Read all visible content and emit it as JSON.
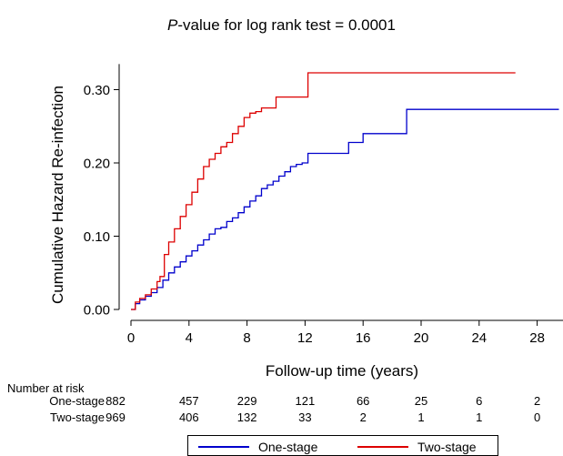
{
  "chart_data": {
    "type": "line",
    "step": true,
    "title_prefix": "P",
    "title_suffix": "-value for log rank test = 0.0001",
    "xlabel": "Follow-up time (years)",
    "ylabel": "Cumulative Hazard Re-infection",
    "xlim": [
      0,
      30
    ],
    "ylim": [
      0,
      0.33
    ],
    "xticks": [
      0,
      4,
      8,
      12,
      16,
      20,
      24,
      28
    ],
    "yticks": [
      0.0,
      0.1,
      0.2,
      0.3
    ],
    "ytick_labels": [
      "0.00",
      "0.10",
      "0.20",
      "0.30"
    ],
    "grid": false,
    "legend_position": "bottom",
    "series": [
      {
        "name": "One-stage",
        "color": "#0000cc",
        "x": [
          0,
          0.3,
          0.6,
          1.0,
          1.4,
          1.8,
          2.2,
          2.6,
          3.0,
          3.4,
          3.8,
          4.2,
          4.6,
          5.0,
          5.4,
          5.8,
          6.2,
          6.6,
          7.0,
          7.4,
          7.8,
          8.2,
          8.6,
          9.0,
          9.4,
          9.8,
          10.2,
          10.6,
          11.0,
          11.4,
          11.8,
          12.2,
          12.6,
          13.0,
          14.0,
          15.0,
          15.6,
          16.0,
          17.0,
          18.0,
          19.0,
          29.5
        ],
        "y": [
          0.0,
          0.008,
          0.013,
          0.018,
          0.023,
          0.03,
          0.04,
          0.05,
          0.058,
          0.065,
          0.073,
          0.08,
          0.088,
          0.095,
          0.103,
          0.11,
          0.112,
          0.12,
          0.125,
          0.132,
          0.14,
          0.148,
          0.155,
          0.165,
          0.17,
          0.175,
          0.182,
          0.188,
          0.195,
          0.198,
          0.2,
          0.213,
          0.213,
          0.213,
          0.213,
          0.228,
          0.228,
          0.24,
          0.24,
          0.24,
          0.273,
          0.273
        ]
      },
      {
        "name": "Two-stage",
        "color": "#dd0000",
        "x": [
          0,
          0.3,
          0.6,
          1.0,
          1.4,
          1.8,
          2.0,
          2.3,
          2.6,
          3.0,
          3.4,
          3.8,
          4.2,
          4.6,
          5.0,
          5.4,
          5.8,
          6.2,
          6.6,
          7.0,
          7.4,
          7.8,
          8.2,
          8.6,
          9.0,
          9.6,
          10.0,
          12.0,
          12.2,
          26.5
        ],
        "y": [
          0.0,
          0.01,
          0.015,
          0.02,
          0.028,
          0.038,
          0.045,
          0.075,
          0.092,
          0.11,
          0.127,
          0.143,
          0.16,
          0.178,
          0.195,
          0.205,
          0.213,
          0.222,
          0.228,
          0.24,
          0.25,
          0.262,
          0.268,
          0.27,
          0.275,
          0.275,
          0.29,
          0.29,
          0.323,
          0.323
        ]
      }
    ],
    "risk_table": {
      "header": "Number at risk",
      "times": [
        0,
        4,
        8,
        12,
        16,
        20,
        24,
        28
      ],
      "rows": [
        {
          "label": "One-stage",
          "values": [
            "882",
            "457",
            "229",
            "121",
            "66",
            "25",
            "6",
            "2"
          ]
        },
        {
          "label": "Two-stage",
          "values": [
            "969",
            "406",
            "132",
            "33",
            "2",
            "1",
            "1",
            "0"
          ]
        }
      ]
    }
  }
}
